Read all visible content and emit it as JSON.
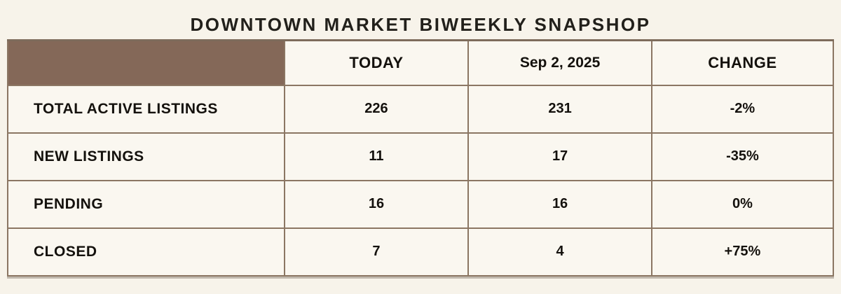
{
  "title": "DOWNTOWN MARKET BIWEEKLY SNAPSHOP",
  "colors": {
    "background": "#f7f3ea",
    "cell_background": "#faf7f0",
    "header_corner_brown": "#846858",
    "border_brown": "#8b7663",
    "text": "#14110d"
  },
  "table": {
    "headers": [
      "TODAY",
      "Sep 2, 2025",
      "CHANGE"
    ],
    "rows": [
      {
        "label": "TOTAL ACTIVE LISTINGS",
        "today": "226",
        "prior": "231",
        "change": "-2%"
      },
      {
        "label": "NEW LISTINGS",
        "today": "11",
        "prior": "17",
        "change": "-35%"
      },
      {
        "label": "PENDING",
        "today": "16",
        "prior": "16",
        "change": "0%"
      },
      {
        "label": "CLOSED",
        "today": "7",
        "prior": "4",
        "change": "+75%"
      }
    ]
  }
}
